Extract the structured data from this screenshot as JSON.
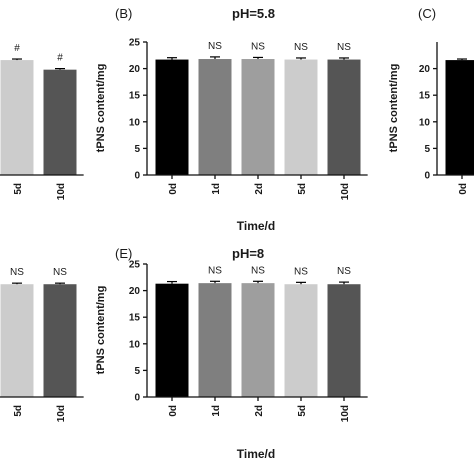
{
  "chart_data": [
    {
      "id": "A",
      "type": "bar",
      "panel_label": "",
      "title": "",
      "categories": [
        "5d",
        "10d"
      ],
      "values": [
        21.6,
        19.8
      ],
      "errors": [
        0.2,
        0.2
      ],
      "annotations": [
        "#",
        "#"
      ],
      "bar_colors": [
        "#cccccc",
        "#555555"
      ],
      "ylim": [
        0,
        25
      ],
      "xlabel": "",
      "ylabel": ""
    },
    {
      "id": "B",
      "type": "bar",
      "panel_label": "(B)",
      "title": "pH=5.8",
      "categories": [
        "0d",
        "1d",
        "2d",
        "5d",
        "10d"
      ],
      "values": [
        21.7,
        21.8,
        21.8,
        21.7,
        21.7
      ],
      "errors": [
        0.35,
        0.4,
        0.3,
        0.3,
        0.3
      ],
      "annotations": [
        "",
        "NS",
        "NS",
        "NS",
        "NS"
      ],
      "bar_colors": [
        "#000000",
        "#7f7f7f",
        "#9e9e9e",
        "#cccccc",
        "#555555"
      ],
      "ylim": [
        0,
        25
      ],
      "yticks": [
        0,
        5,
        10,
        15,
        20,
        25
      ],
      "xlabel": "Time/d",
      "ylabel": "tPNS content/mg"
    },
    {
      "id": "C",
      "type": "bar",
      "panel_label": "(C)",
      "title": "",
      "categories": [
        "0d"
      ],
      "values": [
        21.6
      ],
      "errors": [
        0.2
      ],
      "annotations": [
        ""
      ],
      "bar_colors": [
        "#000000"
      ],
      "ylim": [
        0,
        25
      ],
      "yticks": [
        0,
        5,
        10,
        15,
        20
      ],
      "xlabel": "",
      "ylabel": "tPNS content/mg"
    },
    {
      "id": "D",
      "type": "bar",
      "panel_label": "",
      "title": "",
      "categories": [
        "5d",
        "10d"
      ],
      "values": [
        21.2,
        21.2
      ],
      "errors": [
        0.2,
        0.2
      ],
      "annotations": [
        "NS",
        "NS"
      ],
      "bar_colors": [
        "#cccccc",
        "#555555"
      ],
      "ylim": [
        0,
        25
      ],
      "xlabel": "",
      "ylabel": ""
    },
    {
      "id": "E",
      "type": "bar",
      "panel_label": "(E)",
      "title": "pH=8",
      "categories": [
        "0d",
        "1d",
        "2d",
        "5d",
        "10d"
      ],
      "values": [
        21.3,
        21.4,
        21.4,
        21.2,
        21.2
      ],
      "errors": [
        0.4,
        0.35,
        0.35,
        0.35,
        0.4
      ],
      "annotations": [
        "",
        "NS",
        "NS",
        "NS",
        "NS"
      ],
      "bar_colors": [
        "#000000",
        "#7f7f7f",
        "#9e9e9e",
        "#cccccc",
        "#555555"
      ],
      "ylim": [
        0,
        25
      ],
      "yticks": [
        0,
        5,
        10,
        15,
        20,
        25
      ],
      "xlabel": "Time/d",
      "ylabel": "tPNS content/mg"
    }
  ]
}
